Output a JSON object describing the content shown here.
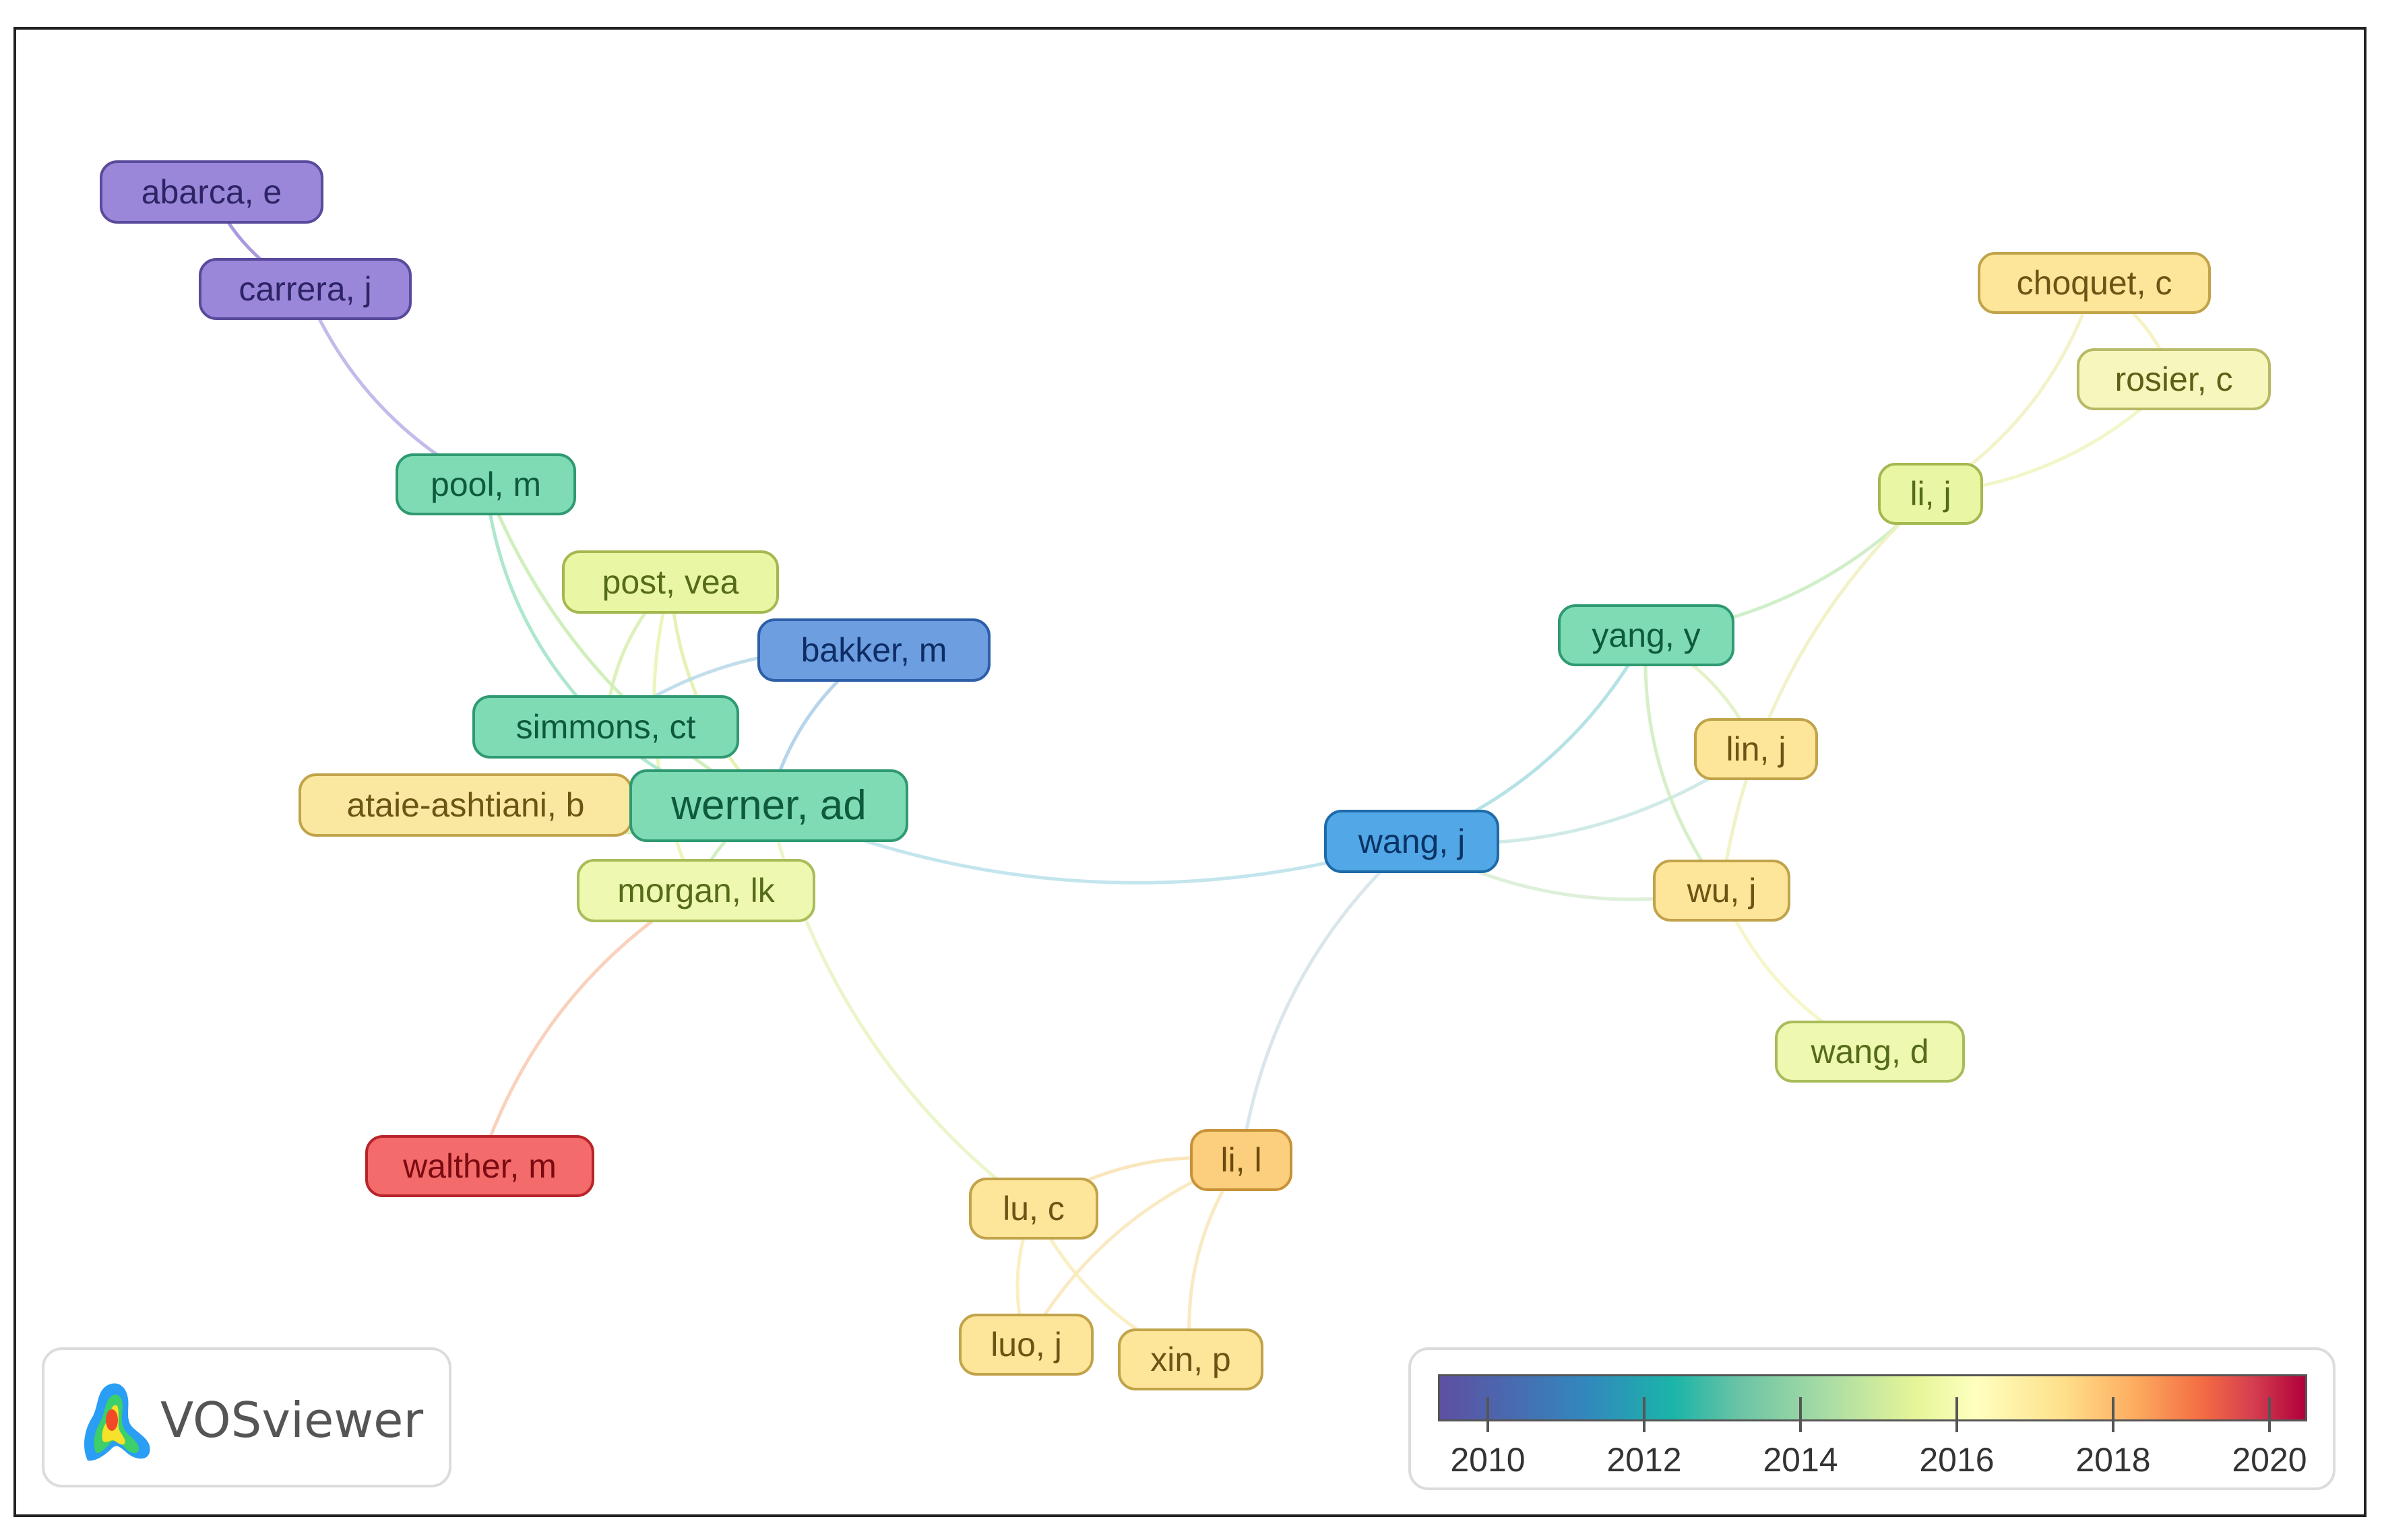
{
  "nodes": [
    {
      "id": "abarca",
      "label": "abarca, e",
      "color": "#9b87d9",
      "border": "#5a4a9c",
      "text": "#2d2466"
    },
    {
      "id": "carrera",
      "label": "carrera, j",
      "color": "#9b87d9",
      "border": "#5a4a9c",
      "text": "#2d2466"
    },
    {
      "id": "pool",
      "label": "pool, m",
      "color": "#7fdbb4",
      "border": "#2f9a72",
      "text": "#0e5a3c"
    },
    {
      "id": "post",
      "label": "post, vea",
      "color": "#e9f7a5",
      "border": "#a3b84f",
      "text": "#556b1a"
    },
    {
      "id": "bakker",
      "label": "bakker, m",
      "color": "#6d9ee0",
      "border": "#2d5fa8",
      "text": "#0e2d66"
    },
    {
      "id": "simmons",
      "label": "simmons, ct",
      "color": "#7fdbb4",
      "border": "#2f9a72",
      "text": "#0e5a3c"
    },
    {
      "id": "ataie",
      "label": "ataie-ashtiani, b",
      "color": "#fbe8a0",
      "border": "#c1a34a",
      "text": "#6b5414"
    },
    {
      "id": "werner",
      "label": "werner, ad",
      "color": "#7fdbb4",
      "border": "#2f9a72",
      "text": "#0e5a3c"
    },
    {
      "id": "morgan",
      "label": "morgan, lk",
      "color": "#eef8b0",
      "border": "#a9bc5a",
      "text": "#556b1a"
    },
    {
      "id": "walther",
      "label": "walther, m",
      "color": "#f46b6b",
      "border": "#b8242a",
      "text": "#7a0b10"
    },
    {
      "id": "wangj",
      "label": "wang, j",
      "color": "#52a8e6",
      "border": "#1f6aa8",
      "text": "#0a3466"
    },
    {
      "id": "lul",
      "label": "li, l",
      "color": "#fbcf7d",
      "border": "#c79238",
      "text": "#6b4a0c"
    },
    {
      "id": "luc",
      "label": "lu, c",
      "color": "#fde59a",
      "border": "#c1a34a",
      "text": "#6b5414"
    },
    {
      "id": "luoj",
      "label": "luo, j",
      "color": "#fde59a",
      "border": "#c1a34a",
      "text": "#6b5414"
    },
    {
      "id": "xinp",
      "label": "xin, p",
      "color": "#fde59a",
      "border": "#c1a34a",
      "text": "#6b5414"
    },
    {
      "id": "choquet",
      "label": "choquet, c",
      "color": "#fde59a",
      "border": "#c1a34a",
      "text": "#6b5414"
    },
    {
      "id": "rosier",
      "label": "rosier, c",
      "color": "#f6f7bd",
      "border": "#b7b966",
      "text": "#5e6015"
    },
    {
      "id": "lij",
      "label": "li, j",
      "color": "#e9f7a5",
      "border": "#a3b84f",
      "text": "#556b1a"
    },
    {
      "id": "yang",
      "label": "yang, y",
      "color": "#7fdbb4",
      "border": "#2f9a72",
      "text": "#0e5a3c"
    },
    {
      "id": "linj",
      "label": "lin, j",
      "color": "#fde59a",
      "border": "#c1a34a",
      "text": "#6b5414"
    },
    {
      "id": "wuj",
      "label": "wu, j",
      "color": "#fde59a",
      "border": "#c1a34a",
      "text": "#6b5414"
    },
    {
      "id": "wangd",
      "label": "wang, d",
      "color": "#eef8b0",
      "border": "#a9bc5a",
      "text": "#556b1a"
    }
  ],
  "edges": [
    {
      "from": "abarca",
      "to": "carrera",
      "color": "#9b87d9"
    },
    {
      "from": "carrera",
      "to": "pool",
      "color": "#b6b0e6"
    },
    {
      "from": "pool",
      "to": "simmons",
      "color": "#9fe3c6"
    },
    {
      "from": "pool",
      "to": "werner",
      "color": "#c8ecb0"
    },
    {
      "from": "post",
      "to": "werner",
      "color": "#e0f0a8"
    },
    {
      "from": "post",
      "to": "morgan",
      "color": "#e6f4b0"
    },
    {
      "from": "post",
      "to": "simmons",
      "color": "#d6efb0"
    },
    {
      "from": "bakker",
      "to": "werner",
      "color": "#a9cce6"
    },
    {
      "from": "bakker",
      "to": "simmons",
      "color": "#b8d8e8"
    },
    {
      "from": "simmons",
      "to": "werner",
      "color": "#a6e3c8"
    },
    {
      "from": "ataie",
      "to": "werner",
      "color": "#d8ecb0"
    },
    {
      "from": "werner",
      "to": "morgan",
      "color": "#c8ecb8"
    },
    {
      "from": "werner",
      "to": "wangj",
      "color": "#b8e0ea"
    },
    {
      "from": "werner",
      "to": "luc",
      "color": "#e6f4c0"
    },
    {
      "from": "morgan",
      "to": "walther",
      "color": "#f8c9b0"
    },
    {
      "from": "wangj",
      "to": "lul",
      "color": "#d2e2e8"
    },
    {
      "from": "wangj",
      "to": "yang",
      "color": "#a8dde0"
    },
    {
      "from": "wangj",
      "to": "linj",
      "color": "#c8e6e4"
    },
    {
      "from": "wangj",
      "to": "wuj",
      "color": "#d8ecd4"
    },
    {
      "from": "yang",
      "to": "lij",
      "color": "#c8ecc0"
    },
    {
      "from": "yang",
      "to": "wuj",
      "color": "#d0ecc0"
    },
    {
      "from": "lij",
      "to": "rosier",
      "color": "#f0f4c0"
    },
    {
      "from": "lij",
      "to": "choquet",
      "color": "#f2f0c0"
    },
    {
      "from": "lij",
      "to": "wuj",
      "color": "#f0f0c0"
    },
    {
      "from": "linj",
      "to": "yang",
      "color": "#e0f0c0"
    },
    {
      "from": "wuj",
      "to": "wangd",
      "color": "#f4f4c0"
    },
    {
      "from": "lul",
      "to": "luc",
      "color": "#f8e2b0"
    },
    {
      "from": "lul",
      "to": "luoj",
      "color": "#f8e6b8"
    },
    {
      "from": "lul",
      "to": "xinp",
      "color": "#f8e6b8"
    },
    {
      "from": "luc",
      "to": "luoj",
      "color": "#f8ecb8"
    },
    {
      "from": "luc",
      "to": "xinp",
      "color": "#f8ecb8"
    },
    {
      "from": "rosier",
      "to": "choquet",
      "color": "#f6f0b8"
    }
  ],
  "branding": {
    "name": "VOSviewer"
  },
  "legend": {
    "ticks": [
      "2010",
      "2012",
      "2014",
      "2016",
      "2018",
      "2020"
    ]
  }
}
